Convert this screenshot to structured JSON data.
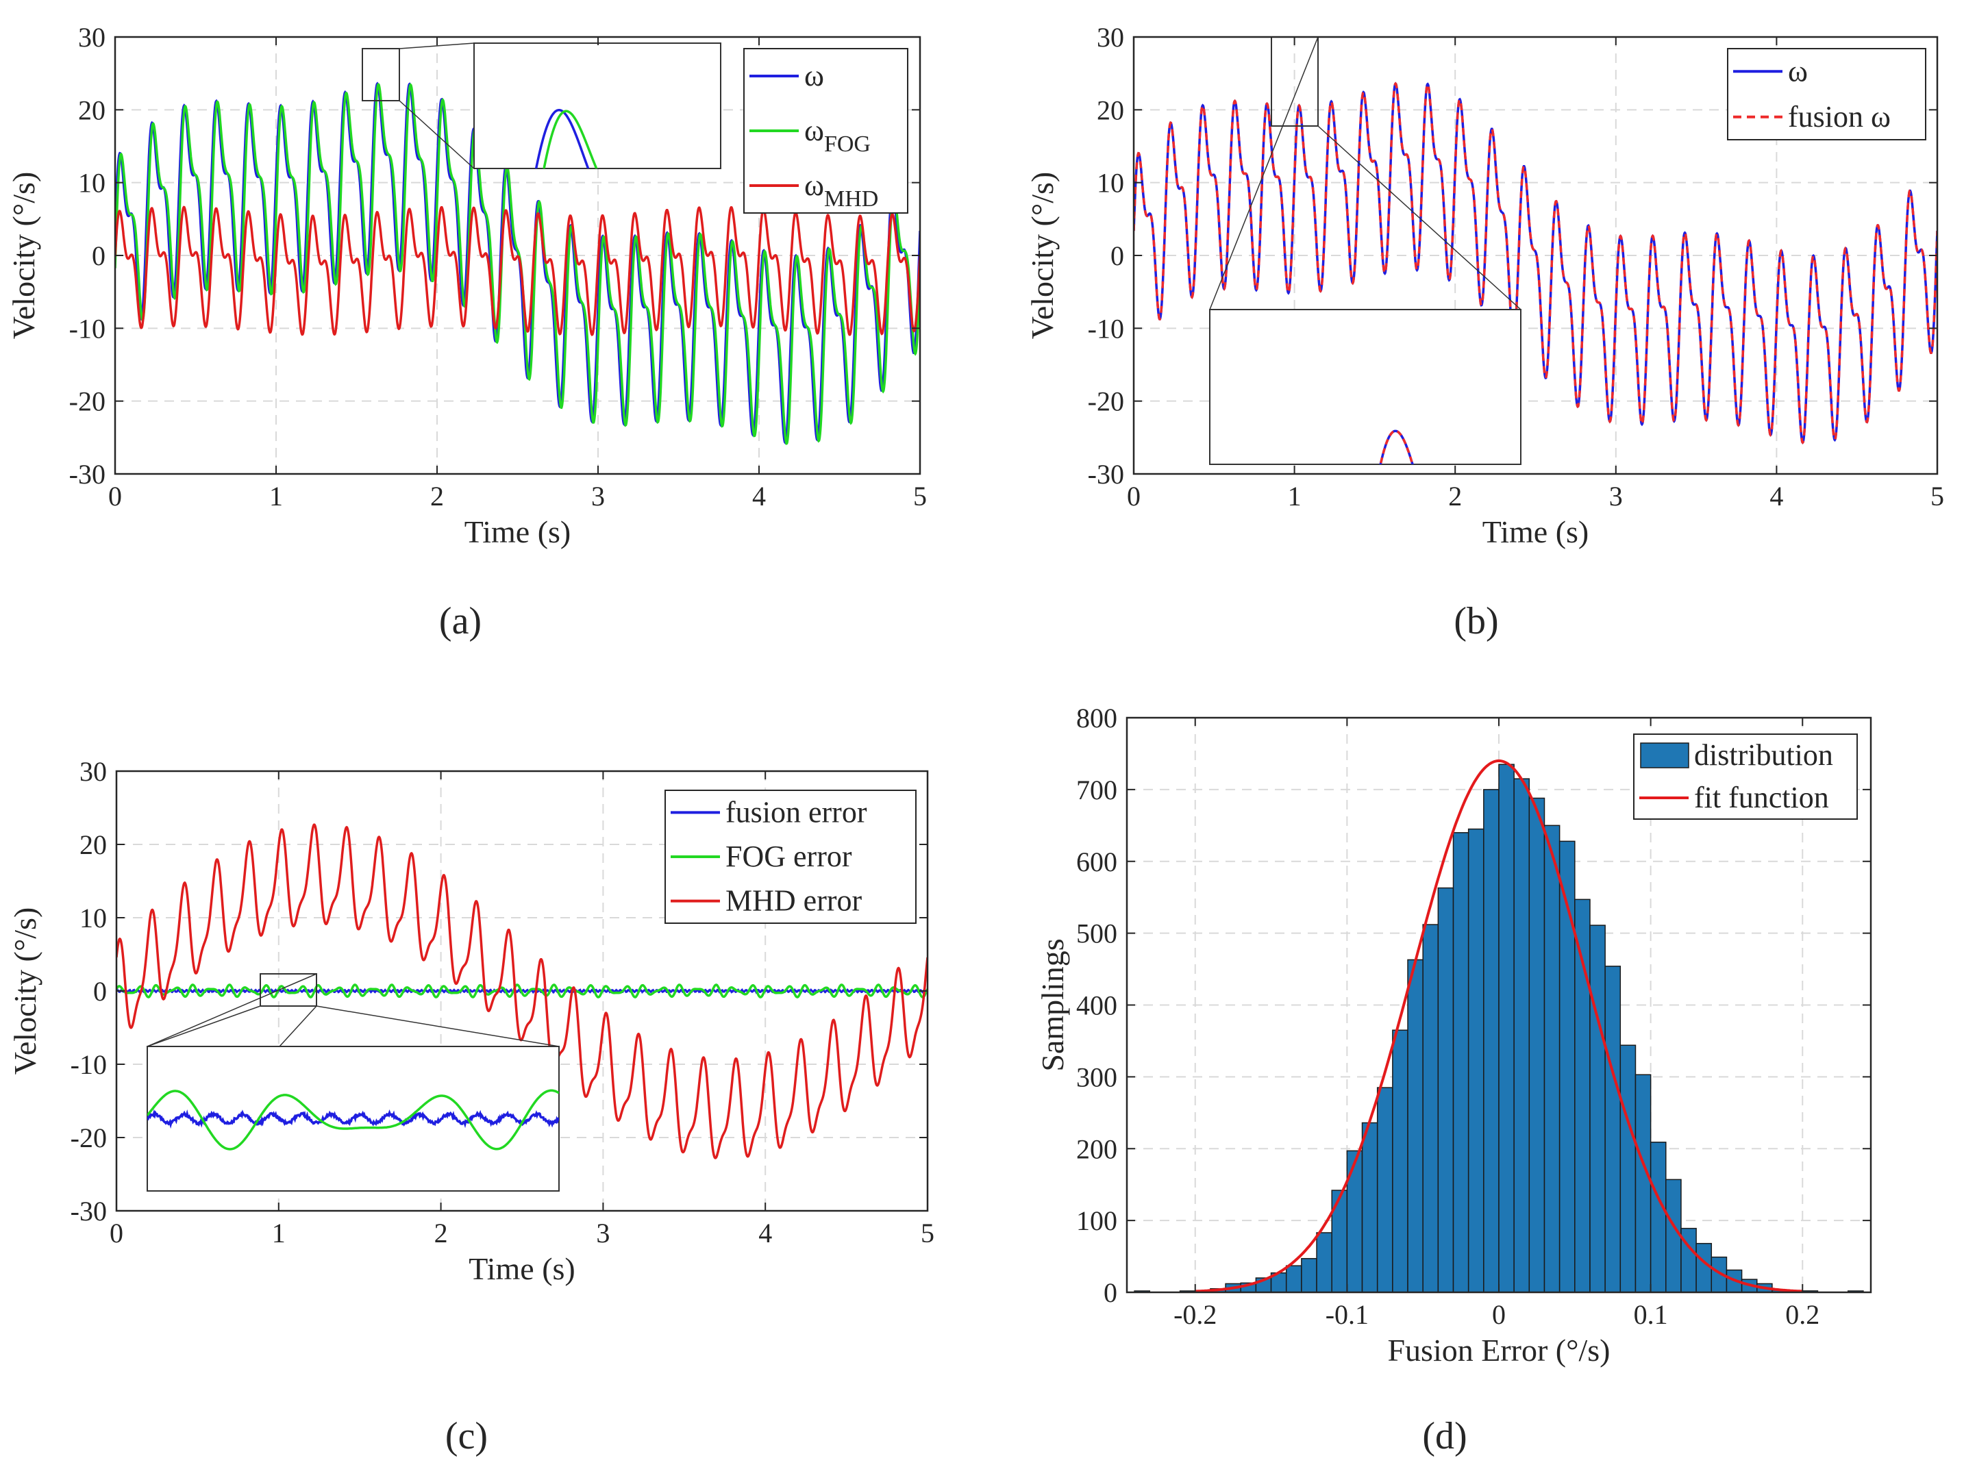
{
  "figure_type": "multi-panel chart figure",
  "colors": {
    "omega": "#1f1fe0",
    "fog": "#22d822",
    "mhd": "#e01d1d",
    "fusion": "#ee2b2b",
    "hist_bar": "#1f77b4",
    "fit": "#e41a1c",
    "grid": "#d9d9d9",
    "axis": "#262626"
  },
  "chart_data": [
    {
      "id": "a",
      "type": "line",
      "caption": "(a)",
      "xlabel": "Time (s)",
      "ylabel": "Velocity (°/s)",
      "xlim": [
        0,
        5
      ],
      "ylim": [
        -30,
        30
      ],
      "xticks": [
        0,
        1,
        2,
        3,
        4,
        5
      ],
      "yticks": [
        -30,
        -20,
        -10,
        0,
        10,
        20,
        30
      ],
      "xtick_labels": [
        "0",
        "1",
        "2",
        "3",
        "4",
        "5"
      ],
      "ytick_labels": [
        "-30",
        "-20",
        "-10",
        "0",
        "10",
        "20",
        "30"
      ],
      "grid": true,
      "legend_position": "top-right",
      "inset": {
        "x_range": [
          1.55,
          1.78
        ],
        "y_range": [
          18,
          30
        ],
        "description": "zoom of omega and omega_FOG"
      },
      "series": [
        {
          "name": "ω",
          "display": "ω",
          "color": "#1f1fe0",
          "model": "omega"
        },
        {
          "name": "ω_FOG",
          "display": "ω",
          "subscript": "FOG",
          "color": "#22d822",
          "model": "fog"
        },
        {
          "name": "ω_MHD",
          "display": "ω",
          "subscript": "MHD",
          "color": "#e01d1d",
          "model": "mhd"
        }
      ]
    },
    {
      "id": "b",
      "type": "line",
      "caption": "(b)",
      "xlabel": "Time (s)",
      "ylabel": "Velocity (°/s)",
      "xlim": [
        0,
        5
      ],
      "ylim": [
        -30,
        30
      ],
      "xticks": [
        0,
        1,
        2,
        3,
        4,
        5
      ],
      "yticks": [
        -30,
        -20,
        -10,
        0,
        10,
        20,
        30
      ],
      "xtick_labels": [
        "0",
        "1",
        "2",
        "3",
        "4",
        "5"
      ],
      "ytick_labels": [
        "-30",
        "-20",
        "-10",
        "0",
        "10",
        "20",
        "30"
      ],
      "grid": true,
      "legend_position": "top-right",
      "inset": {
        "x_range": [
          0.85,
          1.15
        ],
        "y_range": [
          18,
          30
        ],
        "description": "zoom of omega and fusion omega"
      },
      "series": [
        {
          "name": "ω",
          "display": "ω",
          "color": "#1f1fe0",
          "model": "omega"
        },
        {
          "name": "fusion ω",
          "display": "fusion ω",
          "color": "#ee2b2b",
          "dashed": true,
          "model": "omega"
        }
      ]
    },
    {
      "id": "c",
      "type": "line",
      "caption": "(c)",
      "xlabel": "Time (s)",
      "ylabel": "Velocity (°/s)",
      "xlim": [
        0,
        5
      ],
      "ylim": [
        -30,
        30
      ],
      "xticks": [
        0,
        1,
        2,
        3,
        4,
        5
      ],
      "yticks": [
        -30,
        -20,
        -10,
        0,
        10,
        20,
        30
      ],
      "xtick_labels": [
        "0",
        "1",
        "2",
        "3",
        "4",
        "5"
      ],
      "ytick_labels": [
        "-30",
        "-20",
        "-10",
        "0",
        "10",
        "20",
        "30"
      ],
      "grid": true,
      "legend_position": "top-right",
      "inset": {
        "x_range": [
          0.9,
          1.25
        ],
        "y_range": [
          -2,
          2
        ],
        "description": "zoom of fusion error and FOG error"
      },
      "series": [
        {
          "name": "fusion error",
          "display": "fusion error",
          "color": "#1f1fe0",
          "model": "fusion_err"
        },
        {
          "name": "FOG error",
          "display": "FOG error",
          "color": "#22d822",
          "model": "fog_err"
        },
        {
          "name": "MHD error",
          "display": "MHD error",
          "color": "#e01d1d",
          "model": "mhd_err"
        }
      ]
    },
    {
      "id": "d",
      "type": "histogram",
      "caption": "(d)",
      "xlabel": "Fusion Error (°/s)",
      "ylabel": "Samplings",
      "xlim": [
        -0.245,
        0.245
      ],
      "ylim": [
        0,
        800
      ],
      "xticks": [
        -0.2,
        -0.1,
        0,
        0.1,
        0.2
      ],
      "yticks": [
        0,
        100,
        200,
        300,
        400,
        500,
        600,
        700,
        800
      ],
      "xtick_labels": [
        "-0.2",
        "-0.1",
        "0",
        "0.1",
        "0.2"
      ],
      "ytick_labels": [
        "0",
        "100",
        "200",
        "300",
        "400",
        "500",
        "600",
        "700",
        "800"
      ],
      "grid": true,
      "legend_position": "top-right",
      "bin_width": 0.01,
      "bin_centers": [
        -0.235,
        -0.225,
        -0.215,
        -0.205,
        -0.195,
        -0.185,
        -0.175,
        -0.165,
        -0.155,
        -0.145,
        -0.135,
        -0.125,
        -0.115,
        -0.105,
        -0.095,
        -0.085,
        -0.075,
        -0.065,
        -0.055,
        -0.045,
        -0.035,
        -0.025,
        -0.015,
        -0.005,
        0.005,
        0.015,
        0.025,
        0.035,
        0.045,
        0.055,
        0.065,
        0.075,
        0.085,
        0.095,
        0.105,
        0.115,
        0.125,
        0.135,
        0.145,
        0.155,
        0.165,
        0.175,
        0.185,
        0.195,
        0.205,
        0.215,
        0.225,
        0.235
      ],
      "counts": [
        1,
        0,
        0,
        1,
        2,
        5,
        12,
        13,
        20,
        27,
        37,
        47,
        83,
        142,
        197,
        236,
        285,
        365,
        463,
        512,
        563,
        640,
        645,
        700,
        735,
        715,
        688,
        650,
        628,
        547,
        511,
        454,
        344,
        303,
        209,
        157,
        89,
        68,
        49,
        31,
        18,
        12,
        3,
        1,
        2,
        0,
        0,
        1
      ],
      "fit": {
        "type": "gaussian",
        "amplitude": 740,
        "mean": 0.0,
        "sigma": 0.0565
      },
      "series": [
        {
          "name": "distribution",
          "display": "distribution",
          "color": "#1f77b4"
        },
        {
          "name": "fit function",
          "display": "fit function",
          "color": "#e41a1c"
        }
      ]
    }
  ]
}
